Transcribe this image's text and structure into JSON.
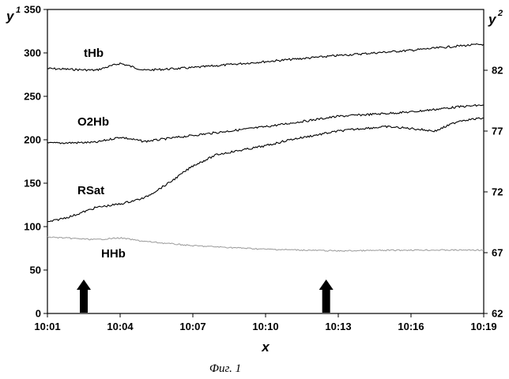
{
  "chart_data": {
    "type": "line",
    "caption": "Фиг. 1",
    "xlabel": "x",
    "y1_label": "y",
    "y1_label_sup": "1",
    "y2_label": "y",
    "y2_label_sup": "2",
    "x_ticks": [
      "10:01",
      "10:04",
      "10:07",
      "10:10",
      "10:13",
      "10:16",
      "10:19"
    ],
    "x_range": [
      "10:01",
      "10:19"
    ],
    "y1_ticks": [
      0,
      50,
      100,
      150,
      200,
      250,
      300,
      350
    ],
    "y1_range": [
      0,
      350
    ],
    "y2_ticks": [
      62,
      67,
      72,
      77,
      82
    ],
    "y2_range": [
      62,
      87
    ],
    "grid": false,
    "arrows_at": [
      "10:02.5",
      "10:12.5"
    ],
    "series": [
      {
        "name": "tHb",
        "axis": "y1",
        "color": "#000000",
        "x": [
          "10:01",
          "10:03",
          "10:04",
          "10:05",
          "10:07",
          "10:10",
          "10:13",
          "10:16",
          "10:18",
          "10:19"
        ],
        "values": [
          282,
          280,
          288,
          280,
          283,
          290,
          297,
          303,
          308,
          310
        ]
      },
      {
        "name": "O2Hb",
        "axis": "y1",
        "color": "#000000",
        "x": [
          "10:01",
          "10:03",
          "10:04",
          "10:05",
          "10:07",
          "10:10",
          "10:13",
          "10:16",
          "10:18",
          "10:19"
        ],
        "values": [
          196,
          197,
          203,
          198,
          205,
          215,
          227,
          232,
          238,
          240
        ]
      },
      {
        "name": "RSat",
        "axis": "y1",
        "color": "#000000",
        "x": [
          "10:01",
          "10:02",
          "10:03",
          "10:04",
          "10:05",
          "10:06",
          "10:07",
          "10:08",
          "10:09",
          "10:10",
          "10:11",
          "10:12",
          "10:13",
          "10:14",
          "10:15",
          "10:16",
          "10:17",
          "10:18",
          "10:19"
        ],
        "values": [
          105,
          112,
          122,
          126,
          133,
          150,
          170,
          183,
          188,
          193,
          200,
          205,
          210,
          213,
          215,
          213,
          210,
          222,
          225
        ]
      },
      {
        "name": "HHb",
        "axis": "y1",
        "color": "#999999",
        "x": [
          "10:01",
          "10:03",
          "10:04",
          "10:05",
          "10:07",
          "10:10",
          "10:13",
          "10:16",
          "10:19"
        ],
        "values": [
          88,
          85,
          87,
          83,
          78,
          74,
          72,
          73,
          73
        ]
      }
    ]
  }
}
